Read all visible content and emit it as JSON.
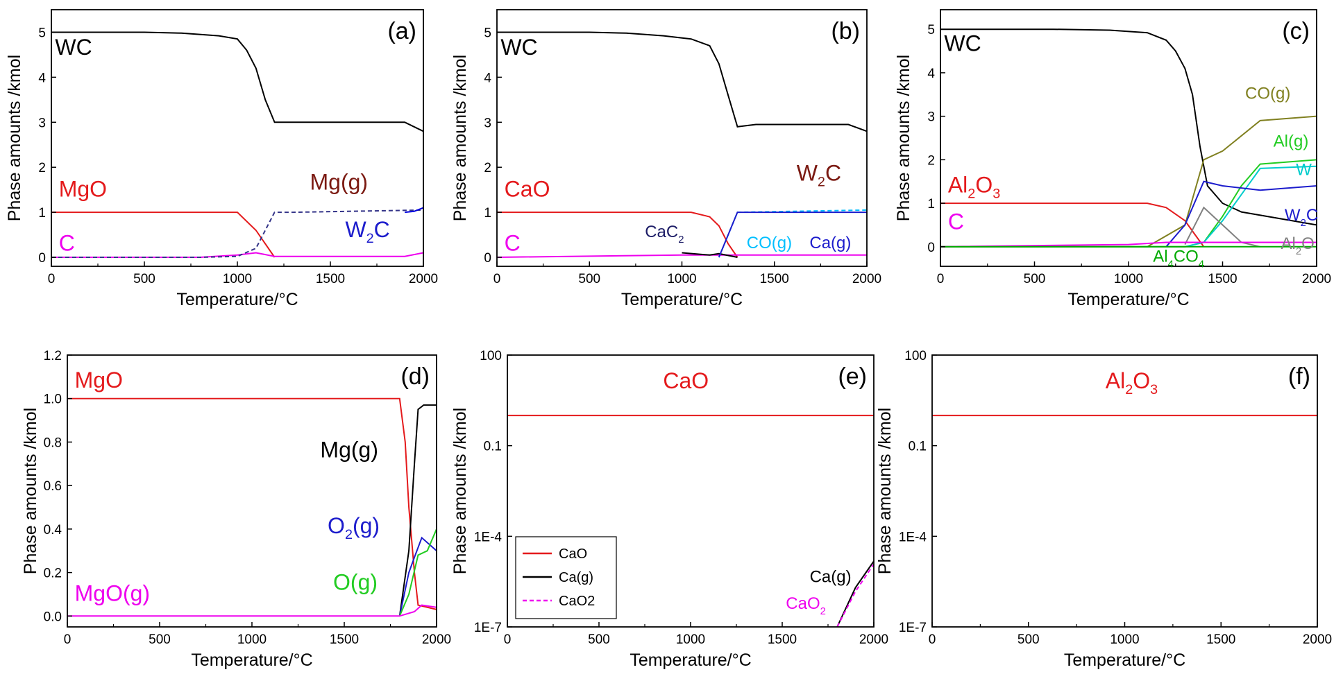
{
  "chart_data": [
    {
      "id": "a",
      "panel_label": "(a)",
      "type": "line",
      "xlabel": "Temperature/°C",
      "ylabel": "Phase amounts /kmol",
      "xlim": [
        0,
        2000
      ],
      "ylim": [
        -0.2,
        5.5
      ],
      "yscale": "linear",
      "xticks": [
        "0",
        "500",
        "1000",
        "1500",
        "2000"
      ],
      "yticks": [
        "0",
        "1",
        "2",
        "3",
        "4",
        "5"
      ],
      "series": [
        {
          "color": "#000000",
          "x": [
            0,
            500,
            700,
            900,
            1000,
            1050,
            1100,
            1150,
            1200,
            1900,
            2000
          ],
          "y": [
            5,
            5,
            4.98,
            4.92,
            4.85,
            4.6,
            4.2,
            3.5,
            3,
            3,
            2.8
          ]
        },
        {
          "color": "#e41a1c",
          "x": [
            0,
            1000,
            1100,
            1150,
            1200
          ],
          "y": [
            1,
            1,
            0.6,
            0.3,
            0
          ]
        },
        {
          "color": "#ee00ee",
          "x": [
            0,
            800,
            1000,
            1100,
            1200,
            1900,
            2000
          ],
          "y": [
            0,
            0,
            0.05,
            0.1,
            0.02,
            0.02,
            0.1
          ]
        },
        {
          "color": "#333388",
          "dash": "6,4",
          "x": [
            0,
            800,
            1000,
            1100,
            1150,
            1200,
            1300,
            2000
          ],
          "y": [
            0,
            0,
            0.02,
            0.2,
            0.6,
            1,
            1,
            1.05
          ]
        },
        {
          "color": "#0000dd",
          "x": [
            1900,
            1950,
            2000
          ],
          "y": [
            1,
            1.02,
            1.1
          ]
        }
      ],
      "annotations": [
        {
          "text": "WC",
          "x": 20,
          "y": 4.5,
          "color": "#000000",
          "size": "ann"
        },
        {
          "text": "MgO",
          "x": 40,
          "y": 1.35,
          "color": "#e41a1c",
          "size": "ann"
        },
        {
          "text": "C",
          "x": 40,
          "y": 0.15,
          "color": "#ee00ee",
          "size": "ann"
        },
        {
          "text": "Mg(g)",
          "x": 1390,
          "y": 1.5,
          "color": "#7b1a12",
          "size": "ann"
        },
        {
          "text": "W",
          "sub": "2",
          "text2": "C",
          "x": 1580,
          "y": 0.45,
          "color": "#1c1ccc",
          "size": "ann"
        }
      ]
    },
    {
      "id": "b",
      "panel_label": "(b)",
      "type": "line",
      "xlabel": "Temperature/°C",
      "ylabel": "Phase amounts /kmol",
      "xlim": [
        0,
        2000
      ],
      "ylim": [
        -0.2,
        5.5
      ],
      "yscale": "linear",
      "xticks": [
        "0",
        "500",
        "1000",
        "1500",
        "2000"
      ],
      "yticks": [
        "0",
        "1",
        "2",
        "3",
        "4",
        "5"
      ],
      "series": [
        {
          "color": "#000000",
          "x": [
            0,
            500,
            700,
            900,
            1050,
            1150,
            1200,
            1250,
            1300,
            1400,
            1900,
            2000
          ],
          "y": [
            5,
            5,
            4.98,
            4.92,
            4.85,
            4.7,
            4.3,
            3.6,
            2.9,
            2.95,
            2.95,
            2.8
          ]
        },
        {
          "color": "#e41a1c",
          "x": [
            0,
            1050,
            1150,
            1200,
            1250,
            1300
          ],
          "y": [
            1,
            1,
            0.9,
            0.7,
            0.3,
            0
          ]
        },
        {
          "color": "#ee00ee",
          "x": [
            0,
            1000,
            1200,
            2000
          ],
          "y": [
            0,
            0.05,
            0.05,
            0.05
          ]
        },
        {
          "color": "#000000",
          "x": [
            1000,
            1150,
            1200,
            1250,
            1300
          ],
          "y": [
            0.1,
            0.05,
            0.08,
            0.04,
            0
          ]
        },
        {
          "color": "#00bfff",
          "dash": "6,4",
          "x": [
            1200,
            1300,
            2000
          ],
          "y": [
            0,
            1,
            1.05
          ]
        },
        {
          "color": "#1c1ccc",
          "x": [
            1200,
            1300,
            2000
          ],
          "y": [
            0,
            1,
            1
          ]
        }
      ],
      "annotations": [
        {
          "text": "WC",
          "x": 20,
          "y": 4.5,
          "color": "#000000",
          "size": "ann"
        },
        {
          "text": "CaO",
          "x": 40,
          "y": 1.35,
          "color": "#e41a1c",
          "size": "ann"
        },
        {
          "text": "C",
          "x": 40,
          "y": 0.15,
          "color": "#ee00ee",
          "size": "ann"
        },
        {
          "text": "W",
          "sub": "2",
          "text2": "C",
          "x": 1620,
          "y": 1.7,
          "color": "#7b1a12",
          "size": "ann"
        },
        {
          "text": "CaC",
          "sub": "2",
          "text2": "",
          "x": 800,
          "y": 0.45,
          "color": "#1c1c66",
          "size": "ann-s"
        },
        {
          "text": "CO(g)",
          "x": 1350,
          "y": 0.2,
          "color": "#00bfff",
          "size": "ann-s"
        },
        {
          "text": "Ca(g)",
          "x": 1690,
          "y": 0.2,
          "color": "#1c1ccc",
          "size": "ann-s"
        }
      ]
    },
    {
      "id": "c",
      "panel_label": "(c)",
      "type": "line",
      "xlabel": "Temperature/°C",
      "ylabel": "Phase amounts /kmol",
      "xlim": [
        0,
        2000
      ],
      "ylim": [
        -0.45,
        5.45
      ],
      "yscale": "linear",
      "xticks": [
        "0",
        "500",
        "1000",
        "1500",
        "2000"
      ],
      "yticks": [
        "0",
        "1",
        "2",
        "3",
        "4",
        "5"
      ],
      "series": [
        {
          "color": "#000000",
          "x": [
            0,
            600,
            900,
            1100,
            1200,
            1250,
            1300,
            1340,
            1380,
            1420,
            1500,
            1600,
            1800,
            2000
          ],
          "y": [
            5,
            5,
            4.98,
            4.92,
            4.75,
            4.5,
            4.1,
            3.5,
            2.3,
            1.4,
            1.0,
            0.8,
            0.65,
            0.5
          ]
        },
        {
          "color": "#e41a1c",
          "x": [
            0,
            1100,
            1200,
            1300,
            1350,
            1400
          ],
          "y": [
            1,
            1,
            0.9,
            0.6,
            0.3,
            0
          ]
        },
        {
          "color": "#808020",
          "x": [
            0,
            1100,
            1300,
            1400,
            1500,
            1700,
            2000
          ],
          "y": [
            0,
            0,
            0.5,
            2,
            2.2,
            2.9,
            3
          ]
        },
        {
          "color": "#22cc22",
          "x": [
            0,
            1300,
            1400,
            1500,
            1600,
            1700,
            2000
          ],
          "y": [
            0,
            0,
            0.1,
            0.7,
            1.4,
            1.9,
            2
          ]
        },
        {
          "color": "#00cccc",
          "x": [
            1300,
            1400,
            1500,
            1700,
            2000
          ],
          "y": [
            0,
            0.1,
            0.6,
            1.8,
            1.85
          ]
        },
        {
          "color": "#1c1ccc",
          "x": [
            1200,
            1300,
            1400,
            1500,
            1700,
            2000
          ],
          "y": [
            0,
            0.5,
            1.5,
            1.4,
            1.3,
            1.4
          ]
        },
        {
          "color": "#808080",
          "x": [
            1300,
            1400,
            1500,
            1600,
            1700
          ],
          "y": [
            0.05,
            0.9,
            0.5,
            0.1,
            0
          ]
        },
        {
          "color": "#ee00ee",
          "x": [
            0,
            1000,
            1200,
            2000
          ],
          "y": [
            0,
            0.05,
            0.1,
            0.1
          ]
        },
        {
          "color": "#00aa00",
          "x": [
            0,
            2000
          ],
          "y": [
            0,
            0
          ]
        }
      ],
      "annotations": [
        {
          "text": "WC",
          "x": 20,
          "y": 4.5,
          "color": "#000000",
          "size": "ann"
        },
        {
          "text": "Al",
          "sub": "2",
          "text2": "O",
          "sub2": "3",
          "x": 40,
          "y": 1.25,
          "color": "#e41a1c",
          "size": "ann"
        },
        {
          "text": "C",
          "x": 40,
          "y": 0.4,
          "color": "#ee00ee",
          "size": "ann"
        },
        {
          "text": "CO(g)",
          "x": 1620,
          "y": 3.4,
          "color": "#808020",
          "size": "ann-s"
        },
        {
          "text": "Al(g)",
          "x": 1770,
          "y": 2.3,
          "color": "#22cc22",
          "size": "ann-s"
        },
        {
          "text": "W",
          "x": 1890,
          "y": 1.65,
          "color": "#00cccc",
          "size": "ann-s"
        },
        {
          "text": "W",
          "sub": "2",
          "text2": "C",
          "x": 1830,
          "y": 0.6,
          "color": "#1c1ccc",
          "size": "ann-s"
        },
        {
          "text": "Al",
          "sub": "2",
          "text2": "O",
          "x": 1810,
          "y": -0.05,
          "color": "#808080",
          "size": "ann-s"
        },
        {
          "text": "Al",
          "sub": "4",
          "text2": "CO",
          "sub2": "4",
          "x": 1130,
          "y": -0.35,
          "color": "#00aa00",
          "size": "ann-s"
        }
      ]
    },
    {
      "id": "d",
      "panel_label": "(d)",
      "type": "line",
      "xlabel": "Temperature/°C",
      "ylabel": "Phase amounts /kmol",
      "xlim": [
        0,
        2000
      ],
      "ylim": [
        -0.05,
        1.2
      ],
      "yscale": "linear",
      "xticks": [
        "0",
        "500",
        "1000",
        "1500",
        "2000"
      ],
      "yticks": [
        "0.0",
        "0.2",
        "0.4",
        "0.6",
        "0.8",
        "1.0",
        "1.2"
      ],
      "series": [
        {
          "color": "#e41a1c",
          "x": [
            0,
            1800,
            1830,
            1850,
            1880,
            1900,
            2000
          ],
          "y": [
            1,
            1,
            0.8,
            0.5,
            0.2,
            0.05,
            0.03
          ]
        },
        {
          "color": "#000000",
          "x": [
            1800,
            1850,
            1880,
            1900,
            1930,
            2000
          ],
          "y": [
            0,
            0.3,
            0.7,
            0.95,
            0.97,
            0.97
          ]
        },
        {
          "color": "#1c1ccc",
          "x": [
            1800,
            1850,
            1880,
            1920,
            2000
          ],
          "y": [
            0,
            0.2,
            0.27,
            0.36,
            0.3
          ]
        },
        {
          "color": "#22cc22",
          "x": [
            1800,
            1850,
            1900,
            1950,
            2000
          ],
          "y": [
            0,
            0.1,
            0.28,
            0.3,
            0.4
          ]
        },
        {
          "color": "#ee00ee",
          "x": [
            0,
            1800,
            1880,
            1920,
            2000
          ],
          "y": [
            0,
            0,
            0.02,
            0.05,
            0.04
          ]
        }
      ],
      "annotations": [
        {
          "text": "MgO",
          "x": 40,
          "y": 1.05,
          "color": "#e41a1c",
          "size": "ann"
        },
        {
          "text": "Mg(g)",
          "x": 1370,
          "y": 0.73,
          "color": "#000000",
          "size": "ann"
        },
        {
          "text": "O",
          "sub": "2",
          "text2": "(g)",
          "x": 1410,
          "y": 0.38,
          "color": "#1c1ccc",
          "size": "ann"
        },
        {
          "text": "O(g)",
          "x": 1440,
          "y": 0.12,
          "color": "#22cc22",
          "size": "ann"
        },
        {
          "text": "MgO(g)",
          "x": 40,
          "y": 0.07,
          "color": "#ee00ee",
          "size": "ann"
        }
      ]
    },
    {
      "id": "e",
      "panel_label": "(e)",
      "type": "line",
      "xlabel": "Temperature/°C",
      "ylabel": "Phase amounts /kmol",
      "xlim": [
        0,
        2000
      ],
      "ylim": [
        1e-07,
        100
      ],
      "yscale": "log",
      "xticks": [
        "0",
        "500",
        "1000",
        "1500",
        "2000"
      ],
      "yticks": [
        "1E-7",
        "1E-4",
        "0.1",
        "100"
      ],
      "ytick_values": [
        1e-07,
        0.0001,
        0.1,
        100
      ],
      "series": [
        {
          "name": "CaO",
          "color": "#e41a1c",
          "x": [
            0,
            2000
          ],
          "y": [
            1,
            1
          ]
        },
        {
          "name": "Ca(g)",
          "color": "#000000",
          "x": [
            1800,
            1900,
            2000
          ],
          "y": [
            1e-07,
            2e-06,
            1.5e-05
          ]
        },
        {
          "name": "CaO2",
          "color": "#ee00ee",
          "dash": "6,4",
          "x": [
            1800,
            1900,
            2000
          ],
          "y": [
            1e-07,
            1.5e-06,
            1.2e-05
          ]
        }
      ],
      "legend": {
        "position": "bottom-left",
        "entries": [
          "CaO",
          "Ca(g)",
          "CaO2"
        ]
      },
      "annotations": [
        {
          "text": "CaO",
          "x": 850,
          "y": 8,
          "color": "#e41a1c",
          "size": "ann"
        },
        {
          "text": "Ca(g)",
          "x": 1650,
          "y": 3e-06,
          "color": "#000000",
          "size": "ann-s"
        },
        {
          "text": "CaO",
          "sub": "2",
          "text2": "",
          "x": 1520,
          "y": 4e-07,
          "color": "#ee00ee",
          "size": "ann-s"
        }
      ]
    },
    {
      "id": "f",
      "panel_label": "(f)",
      "type": "line",
      "xlabel": "Temperature/°C",
      "ylabel": "Phase amounts /kmol",
      "xlim": [
        0,
        2000
      ],
      "ylim": [
        1e-07,
        100
      ],
      "yscale": "log",
      "xticks": [
        "0",
        "500",
        "1000",
        "1500",
        "2000"
      ],
      "yticks": [
        "1E-7",
        "1E-4",
        "0.1",
        "100"
      ],
      "ytick_values": [
        1e-07,
        0.0001,
        0.1,
        100
      ],
      "series": [
        {
          "color": "#e41a1c",
          "x": [
            0,
            2000
          ],
          "y": [
            1,
            1
          ]
        }
      ],
      "annotations": [
        {
          "text": "Al",
          "sub": "2",
          "text2": "O",
          "sub2": "3",
          "x": 900,
          "y": 8,
          "color": "#e41a1c",
          "size": "ann"
        }
      ]
    }
  ]
}
